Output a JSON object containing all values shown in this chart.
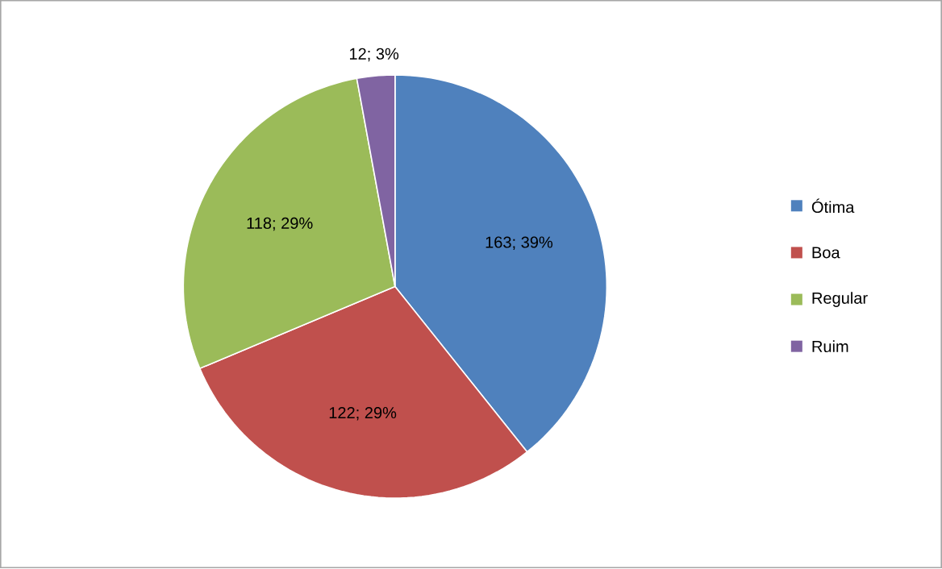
{
  "chart_data": {
    "type": "pie",
    "categories": [
      "Ótima",
      "Boa",
      "Regular",
      "Ruim"
    ],
    "values": [
      163,
      122,
      118,
      12
    ],
    "colors": [
      "#4f81bd",
      "#c0504d",
      "#9bbb59",
      "#8064a2"
    ],
    "value_labels": [
      "163; 39%",
      "122; 29%",
      "118; 29%",
      "12; 3%"
    ],
    "legend": "right"
  }
}
